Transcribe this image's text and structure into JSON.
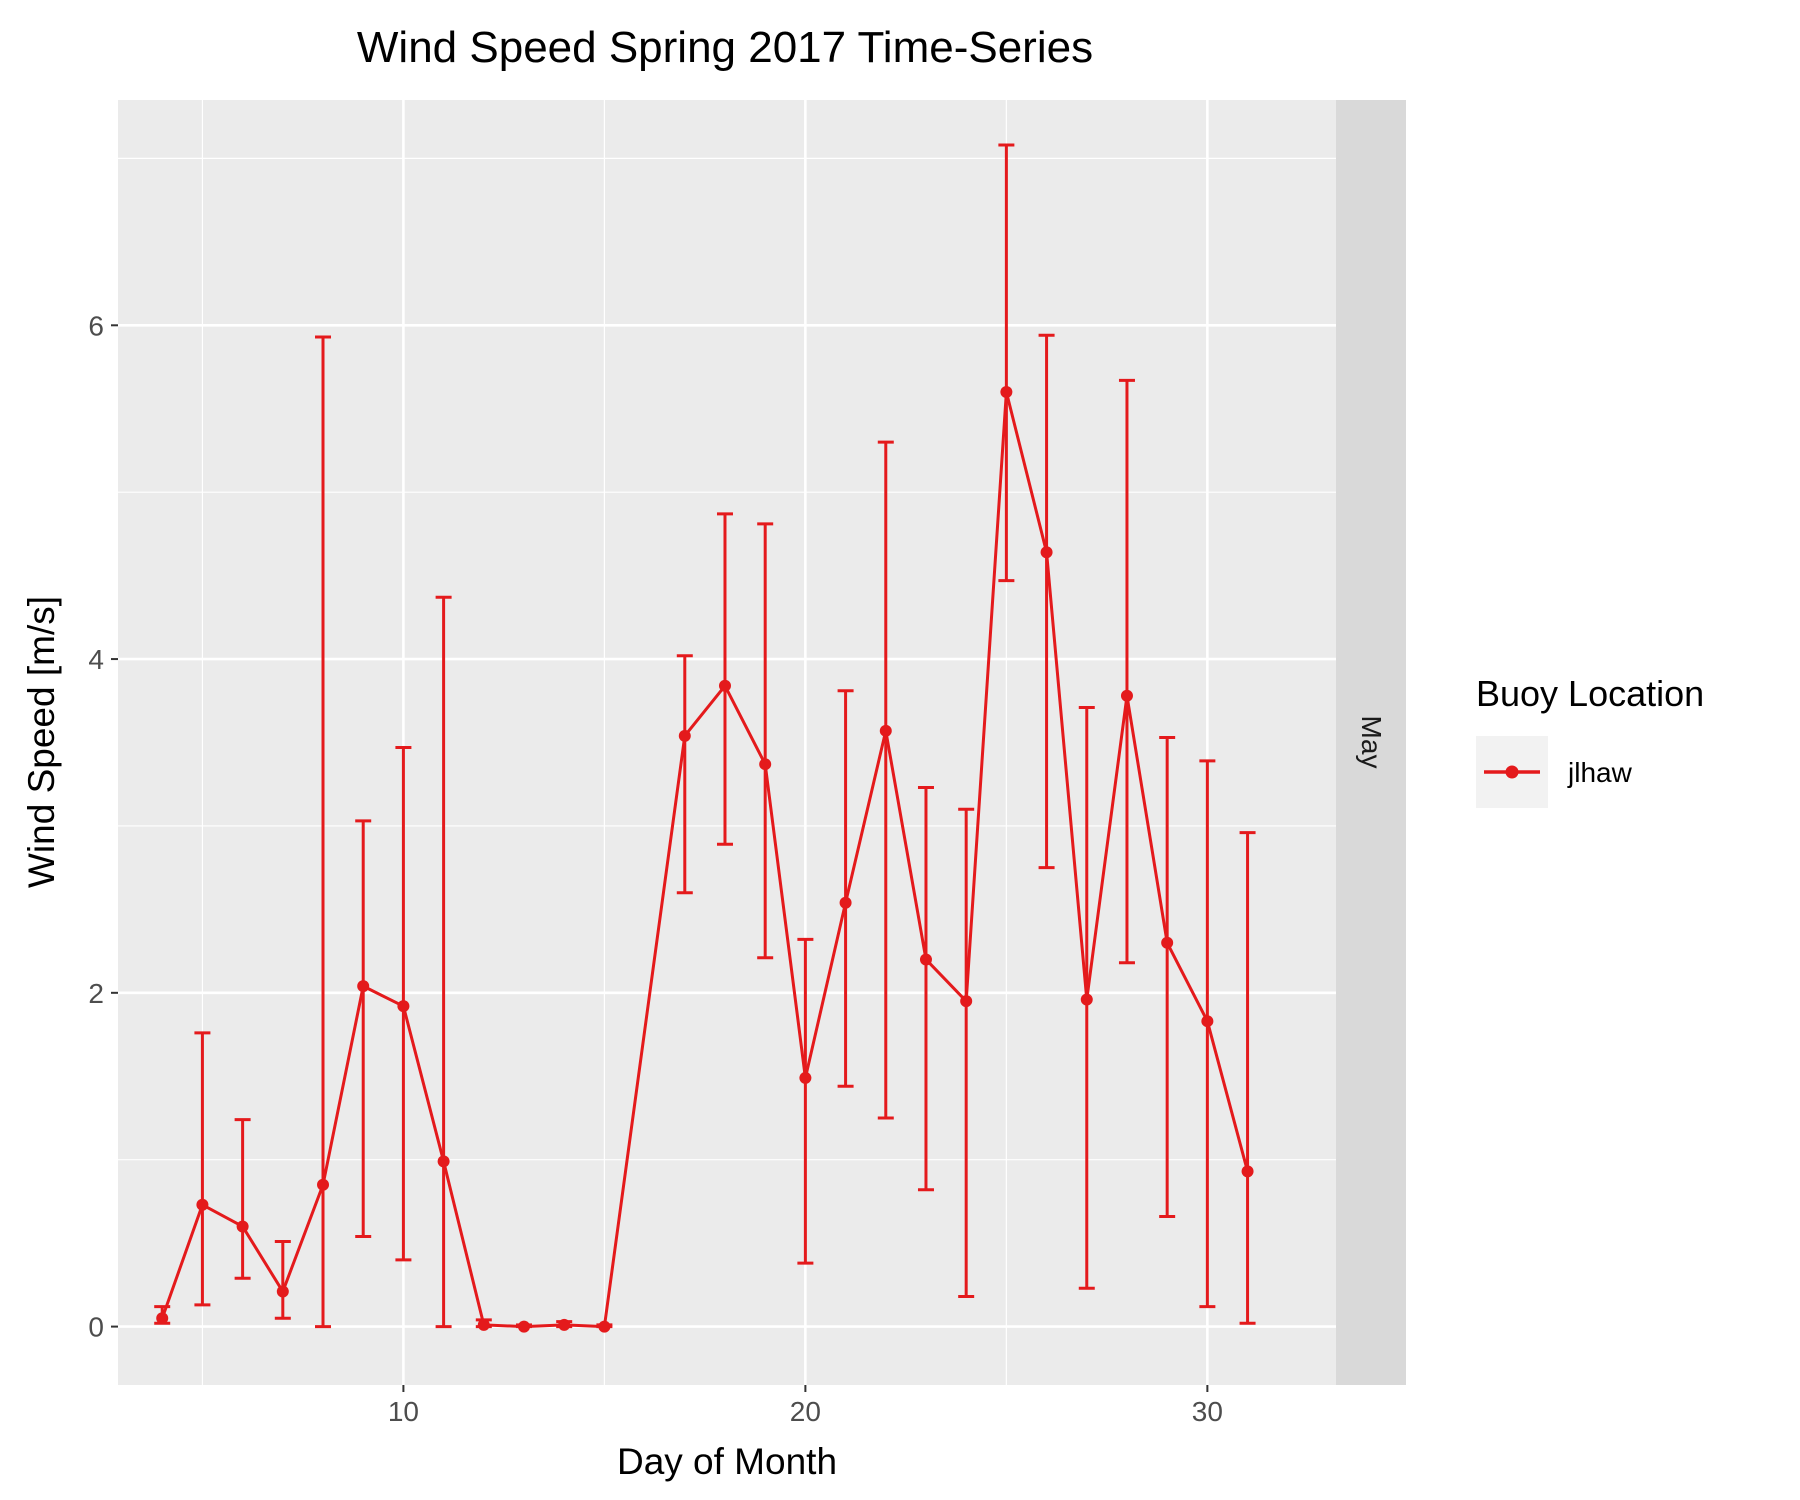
{
  "chart_data": {
    "type": "line",
    "title": "Wind Speed Spring 2017 Time-Series",
    "xlabel": "Day of Month",
    "ylabel": "Wind Speed [m/s]",
    "xlim": [
      2.9,
      33.2
    ],
    "ylim": [
      -0.35,
      7.35
    ],
    "x_ticks": [
      10,
      20,
      30
    ],
    "y_ticks": [
      0,
      2,
      4,
      6
    ],
    "x_tick_labels": [
      "10",
      "20",
      "30"
    ],
    "y_tick_labels": [
      "0",
      "2",
      "4",
      "6"
    ],
    "facet_label": "May",
    "grid": true,
    "legend_position": "right",
    "legend_title": "Buoy Location",
    "series": [
      {
        "name": "jlhaw",
        "color": "#e41a1c",
        "points": [
          {
            "x": 4,
            "y": 0.05,
            "ymin": 0.02,
            "ymax": 0.12
          },
          {
            "x": 5,
            "y": 0.73,
            "ymin": 0.13,
            "ymax": 1.76
          },
          {
            "x": 6,
            "y": 0.6,
            "ymin": 0.29,
            "ymax": 1.24
          },
          {
            "x": 7,
            "y": 0.21,
            "ymin": 0.05,
            "ymax": 0.51
          },
          {
            "x": 8,
            "y": 0.85,
            "ymin": 0.0,
            "ymax": 5.93
          },
          {
            "x": 9,
            "y": 2.04,
            "ymin": 0.54,
            "ymax": 3.03
          },
          {
            "x": 10,
            "y": 1.92,
            "ymin": 0.4,
            "ymax": 3.47
          },
          {
            "x": 11,
            "y": 0.99,
            "ymin": 0.0,
            "ymax": 4.37
          },
          {
            "x": 12,
            "y": 0.01,
            "ymin": 0.0,
            "ymax": 0.04
          },
          {
            "x": 13,
            "y": 0.0,
            "ymin": 0.0,
            "ymax": 0.01
          },
          {
            "x": 14,
            "y": 0.01,
            "ymin": 0.0,
            "ymax": 0.03
          },
          {
            "x": 15,
            "y": 0.0,
            "ymin": 0.0,
            "ymax": 0.01
          },
          {
            "x": 17,
            "y": 3.54,
            "ymin": 2.6,
            "ymax": 4.02
          },
          {
            "x": 18,
            "y": 3.84,
            "ymin": 2.89,
            "ymax": 4.87
          },
          {
            "x": 19,
            "y": 3.37,
            "ymin": 2.21,
            "ymax": 4.81
          },
          {
            "x": 20,
            "y": 1.49,
            "ymin": 0.38,
            "ymax": 2.32
          },
          {
            "x": 21,
            "y": 2.54,
            "ymin": 1.44,
            "ymax": 3.81
          },
          {
            "x": 22,
            "y": 3.57,
            "ymin": 1.25,
            "ymax": 5.3
          },
          {
            "x": 23,
            "y": 2.2,
            "ymin": 0.82,
            "ymax": 3.23
          },
          {
            "x": 24,
            "y": 1.95,
            "ymin": 0.18,
            "ymax": 3.1
          },
          {
            "x": 25,
            "y": 5.6,
            "ymin": 4.47,
            "ymax": 7.08
          },
          {
            "x": 26,
            "y": 4.64,
            "ymin": 2.75,
            "ymax": 5.94
          },
          {
            "x": 27,
            "y": 1.96,
            "ymin": 0.23,
            "ymax": 3.71
          },
          {
            "x": 28,
            "y": 3.78,
            "ymin": 2.18,
            "ymax": 5.67
          },
          {
            "x": 29,
            "y": 2.3,
            "ymin": 0.66,
            "ymax": 3.53
          },
          {
            "x": 30,
            "y": 1.83,
            "ymin": 0.12,
            "ymax": 3.39
          },
          {
            "x": 31,
            "y": 0.93,
            "ymin": 0.02,
            "ymax": 2.96
          }
        ]
      }
    ]
  }
}
